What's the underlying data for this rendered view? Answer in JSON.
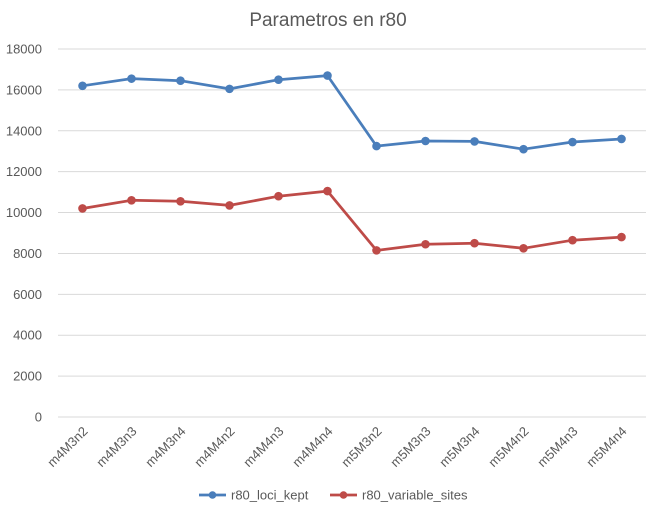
{
  "chart_data": {
    "type": "line",
    "title": "Parametros en r80",
    "xlabel": "",
    "ylabel": "",
    "categories": [
      "m4M3n2",
      "m4M3n3",
      "m4M3n4",
      "m4M4n2",
      "m4M4n3",
      "m4M4n4",
      "m5M3n2",
      "m5M3n3",
      "m5M3n4",
      "m5M4n2",
      "m5M4n3",
      "m5M4n4"
    ],
    "ylim": [
      0,
      18000
    ],
    "yticks": [
      0,
      2000,
      4000,
      6000,
      8000,
      10000,
      12000,
      14000,
      16000,
      18000
    ],
    "grid": true,
    "legend_position": "bottom",
    "series": [
      {
        "name": "r80_loci_kept",
        "color": "#4a7ebb",
        "values": [
          16200,
          16550,
          16450,
          16050,
          16500,
          16700,
          13250,
          13500,
          13480,
          13100,
          13450,
          13600
        ]
      },
      {
        "name": "r80_variable_sites",
        "color": "#be4b48",
        "values": [
          10200,
          10600,
          10550,
          10350,
          10800,
          11050,
          8150,
          8450,
          8500,
          8250,
          8650,
          8800
        ]
      }
    ]
  }
}
